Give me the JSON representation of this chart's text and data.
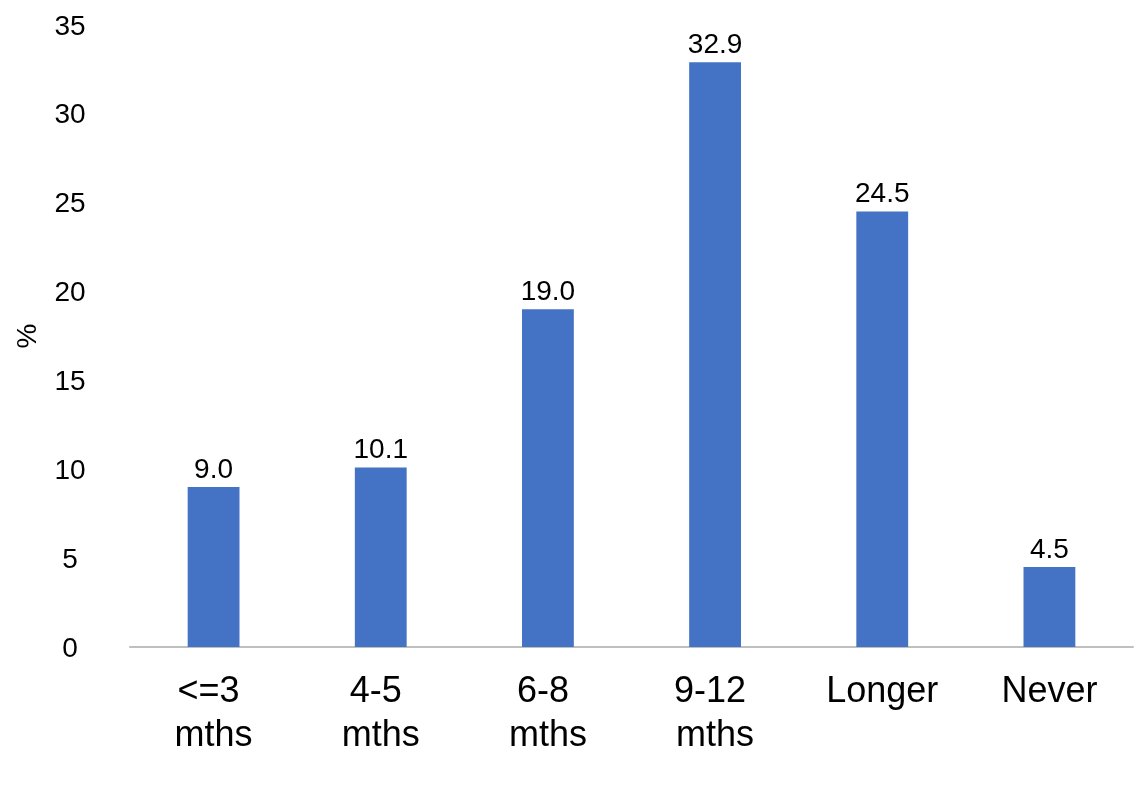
{
  "chart_data": {
    "type": "bar",
    "ylabel": "%",
    "categories": [
      "<=3 mths",
      "4-5 mths",
      "6-8 mths",
      "9-12 mths",
      "Longer",
      "Never"
    ],
    "values": [
      9.0,
      10.1,
      19.0,
      32.9,
      24.5,
      4.5
    ],
    "value_labels": [
      "9.0",
      "10.1",
      "19.0",
      "32.9",
      "24.5",
      "4.5"
    ],
    "color": "#4472c4",
    "ylim": [
      0,
      35
    ],
    "yticks": [
      0,
      5,
      10,
      15,
      20,
      25,
      30,
      35
    ],
    "grid": false
  }
}
